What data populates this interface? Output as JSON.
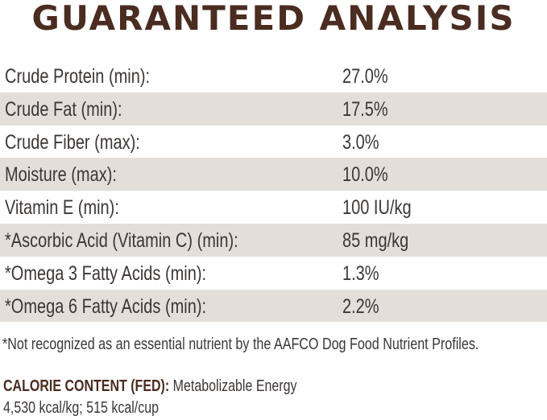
{
  "title": "GUARANTEED ANALYSIS",
  "colors": {
    "title": "#4a2c20",
    "shaded_row": "#e4dedb",
    "text": "#3b3735"
  },
  "rows": [
    {
      "label": "Crude Protein (min):",
      "value": "27.0%"
    },
    {
      "label": "Crude Fat (min):",
      "value": "17.5%"
    },
    {
      "label": "Crude Fiber (max):",
      "value": "3.0%"
    },
    {
      "label": "Moisture (max):",
      "value": "10.0%"
    },
    {
      "label": "Vitamin E (min):",
      "value": "100 IU/kg"
    },
    {
      "label": "*Ascorbic Acid (Vitamin C) (min):",
      "value": "85 mg/kg"
    },
    {
      "label": "*Omega 3 Fatty Acids (min):",
      "value": "1.3%"
    },
    {
      "label": "*Omega 6 Fatty Acids (min):",
      "value": "2.2%"
    }
  ],
  "footnote": "*Not recognized as an essential nutrient by the AAFCO Dog Food Nutrient Profiles.",
  "calorie": {
    "heading": "CALORIE CONTENT (FED):",
    "line1": "Metabolizable Energy",
    "line2": "4,530 kcal/kg; 515 kcal/cup"
  }
}
